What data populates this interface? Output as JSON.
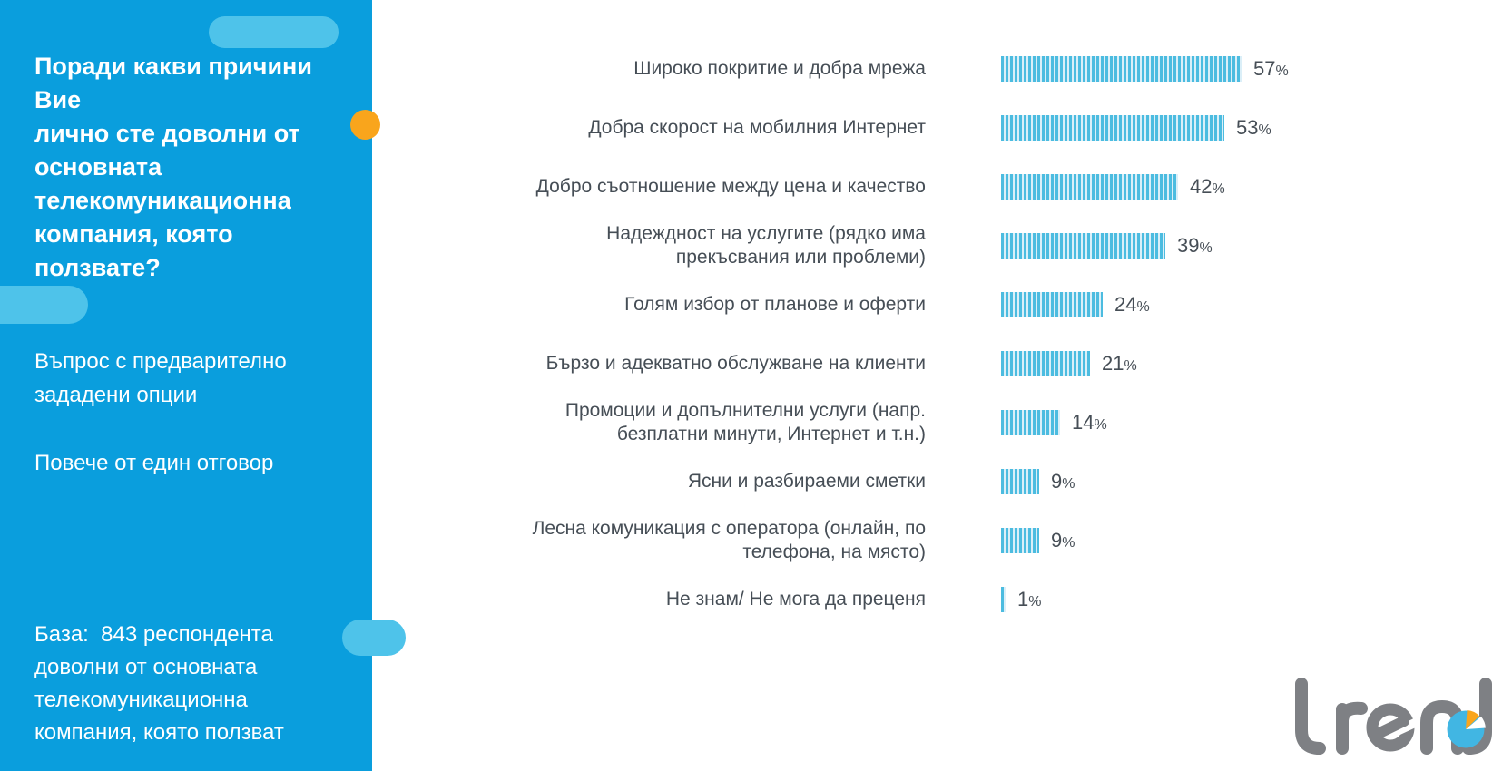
{
  "sidebar": {
    "title": "Поради какви причини Вие\nлично сте доволни от\nосновната\nтелекомуникационна\nкомпания, която ползвате?",
    "note_question_type": "Въпрос с предварително\nзададени опции",
    "note_answers": "Повече от един отговор",
    "base_note": "База:  843 респондента\nдоволни от основната\nтелекомуникационна\nкомпания, която ползват"
  },
  "chart_data": {
    "type": "bar",
    "orientation": "horizontal",
    "unit": "%",
    "xlim": [
      0,
      100
    ],
    "bar_style": "vertical-stripes",
    "bar_color": "#4cbce0",
    "value_label_suffix": "%",
    "categories": [
      "Широко покритие и добра мрежа",
      "Добра скорост на мобилния Интернет",
      "Добро съотношение между цена и качество",
      "Надеждност на услугите (рядко има\nпрекъсвания или проблеми)",
      "Голям избор от планове и оферти",
      "Бързо и адекватно обслужване на клиенти",
      "Промоции и допълнителни услуги (напр.\nбезплатни минути, Интернет и т.н.)",
      "Ясни и разбираеми сметки",
      "Лесна комуникация с оператора (онлайн, по\nтелефона, на място)",
      "Не знам/ Не мога да преценя"
    ],
    "values": [
      57,
      53,
      42,
      39,
      24,
      21,
      14,
      9,
      9,
      1
    ]
  },
  "logo": {
    "text": "trend"
  },
  "colors": {
    "sidebar_bg": "#0a9edd",
    "accent_pill": "#4ec3ea",
    "accent_orange": "#f9a51c",
    "bar_blue": "#4cbce0",
    "bar_gap": "#dbeff8",
    "text_dark": "#464e56",
    "logo_gray": "#7e8084",
    "logo_pie_blue": "#41b6e3"
  }
}
